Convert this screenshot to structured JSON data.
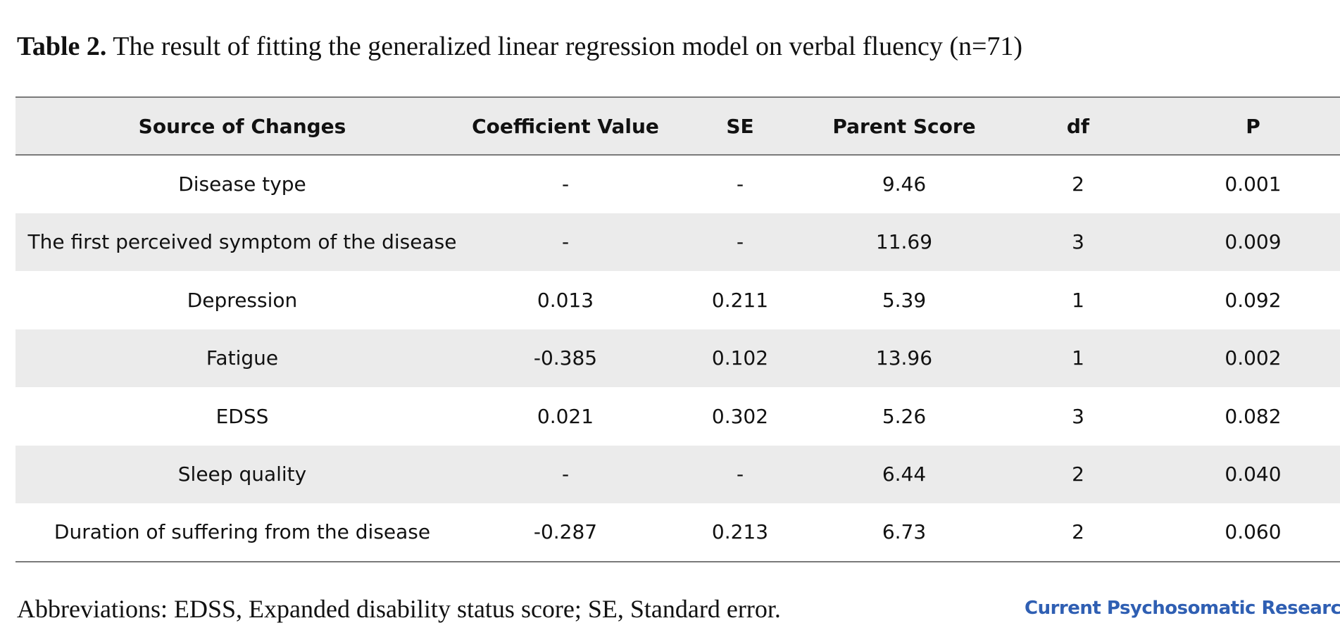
{
  "caption": {
    "label": "Table 2.",
    "text": " The result of fitting the generalized linear regression model on verbal fluency (n=71)"
  },
  "table": {
    "headers": [
      "Source of Changes",
      "Coefficient Value",
      "SE",
      "Parent Score",
      "df",
      "P"
    ],
    "rows": [
      [
        "Disease type",
        "-",
        "-",
        "9.46",
        "2",
        "0.001"
      ],
      [
        "The first perceived symptom of the disease",
        "-",
        "-",
        "11.69",
        "3",
        "0.009"
      ],
      [
        "Depression",
        "0.013",
        "0.211",
        "5.39",
        "1",
        "0.092"
      ],
      [
        "Fatigue",
        "-0.385",
        "0.102",
        "13.96",
        "1",
        "0.002"
      ],
      [
        "EDSS",
        "0.021",
        "0.302",
        "5.26",
        "3",
        "0.082"
      ],
      [
        "Sleep quality",
        "-",
        "-",
        "6.44",
        "2",
        "0.040"
      ],
      [
        "Duration of suffering from the disease",
        "-0.287",
        "0.213",
        "6.73",
        "2",
        "0.060"
      ]
    ]
  },
  "footnote": "Abbreviations: EDSS, Expanded disability status score; SE, Standard error.",
  "journal": "Current Psychosomatic Research",
  "colors": {
    "header_bg": "#ebebeb",
    "alt_row_bg": "#ebebeb",
    "rule": "#7a7a7a",
    "journal_blue": "#2f5fb3"
  }
}
